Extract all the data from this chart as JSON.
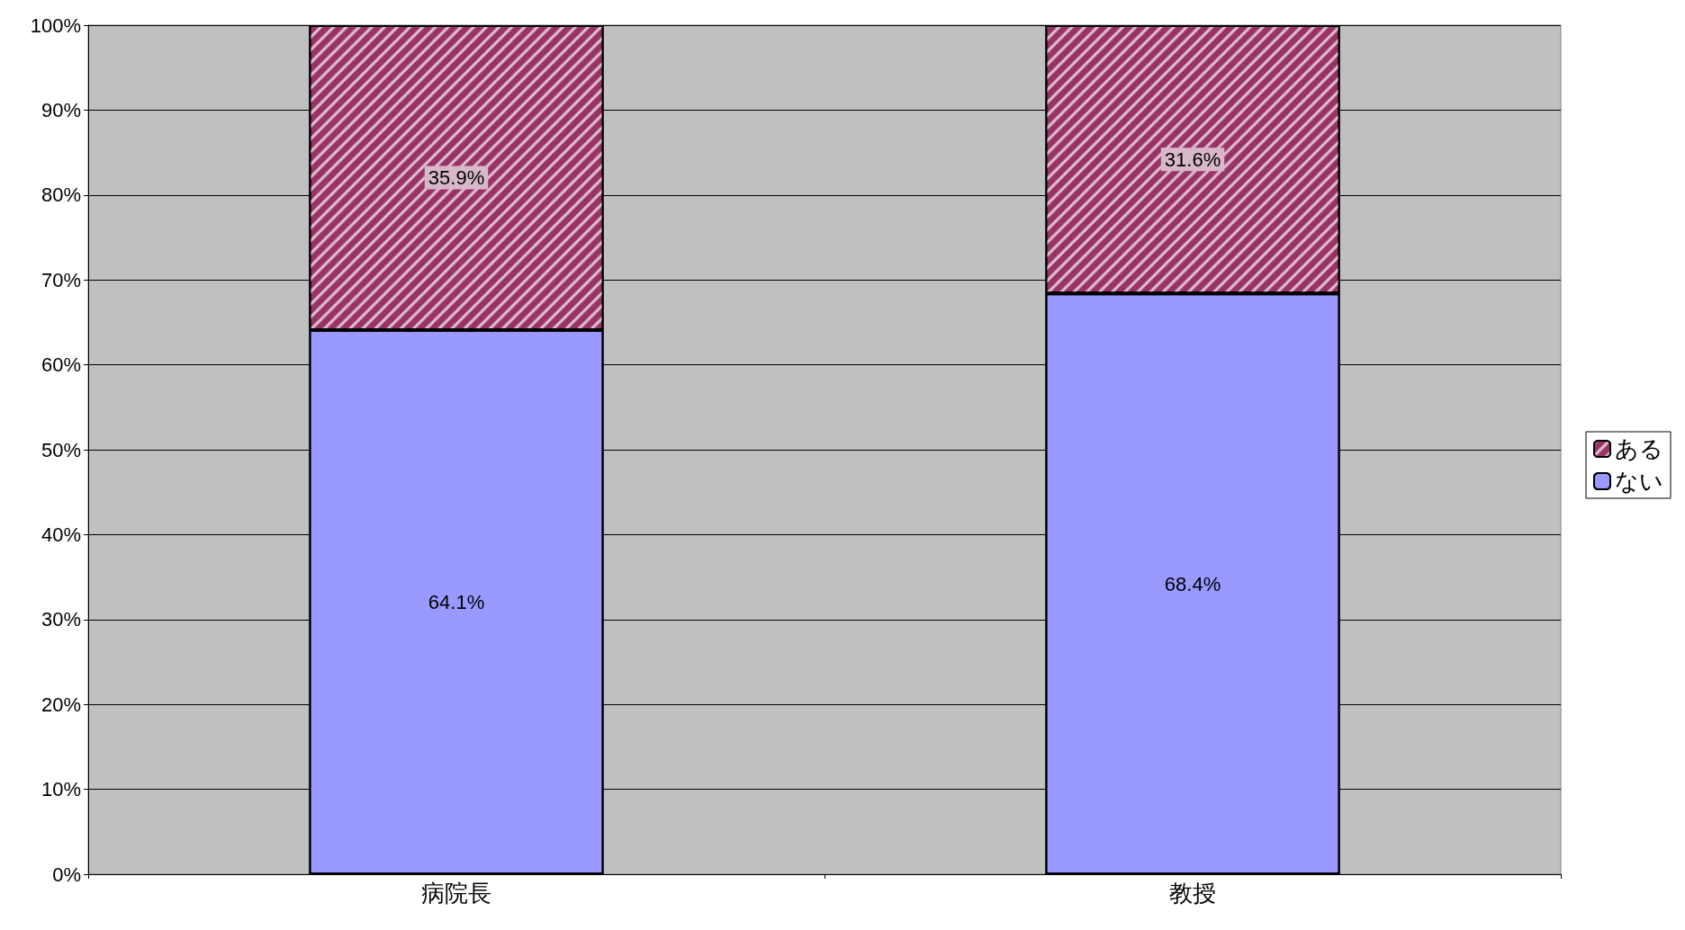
{
  "chart_data": {
    "type": "bar",
    "stacked": true,
    "categories": [
      "病院長",
      "教授"
    ],
    "series": [
      {
        "name": "ない",
        "color": "#9999ff",
        "values": [
          64.1,
          68.4
        ],
        "value_labels": [
          "64.1%",
          "68.4%"
        ]
      },
      {
        "name": "ある",
        "color": "#993366",
        "values": [
          35.9,
          31.6
        ],
        "value_labels": [
          "35.9%",
          "31.6%"
        ]
      }
    ],
    "ylim": [
      0,
      100
    ],
    "yticks": [
      {
        "value": 0,
        "label": "0%"
      },
      {
        "value": 10,
        "label": "10%"
      },
      {
        "value": 20,
        "label": "20%"
      },
      {
        "value": 30,
        "label": "30%"
      },
      {
        "value": 40,
        "label": "40%"
      },
      {
        "value": 50,
        "label": "50%"
      },
      {
        "value": 60,
        "label": "60%"
      },
      {
        "value": 70,
        "label": "70%"
      },
      {
        "value": 80,
        "label": "80%"
      },
      {
        "value": 90,
        "label": "90%"
      },
      {
        "value": 100,
        "label": "100%"
      }
    ],
    "grid": "y",
    "legend": "right"
  }
}
